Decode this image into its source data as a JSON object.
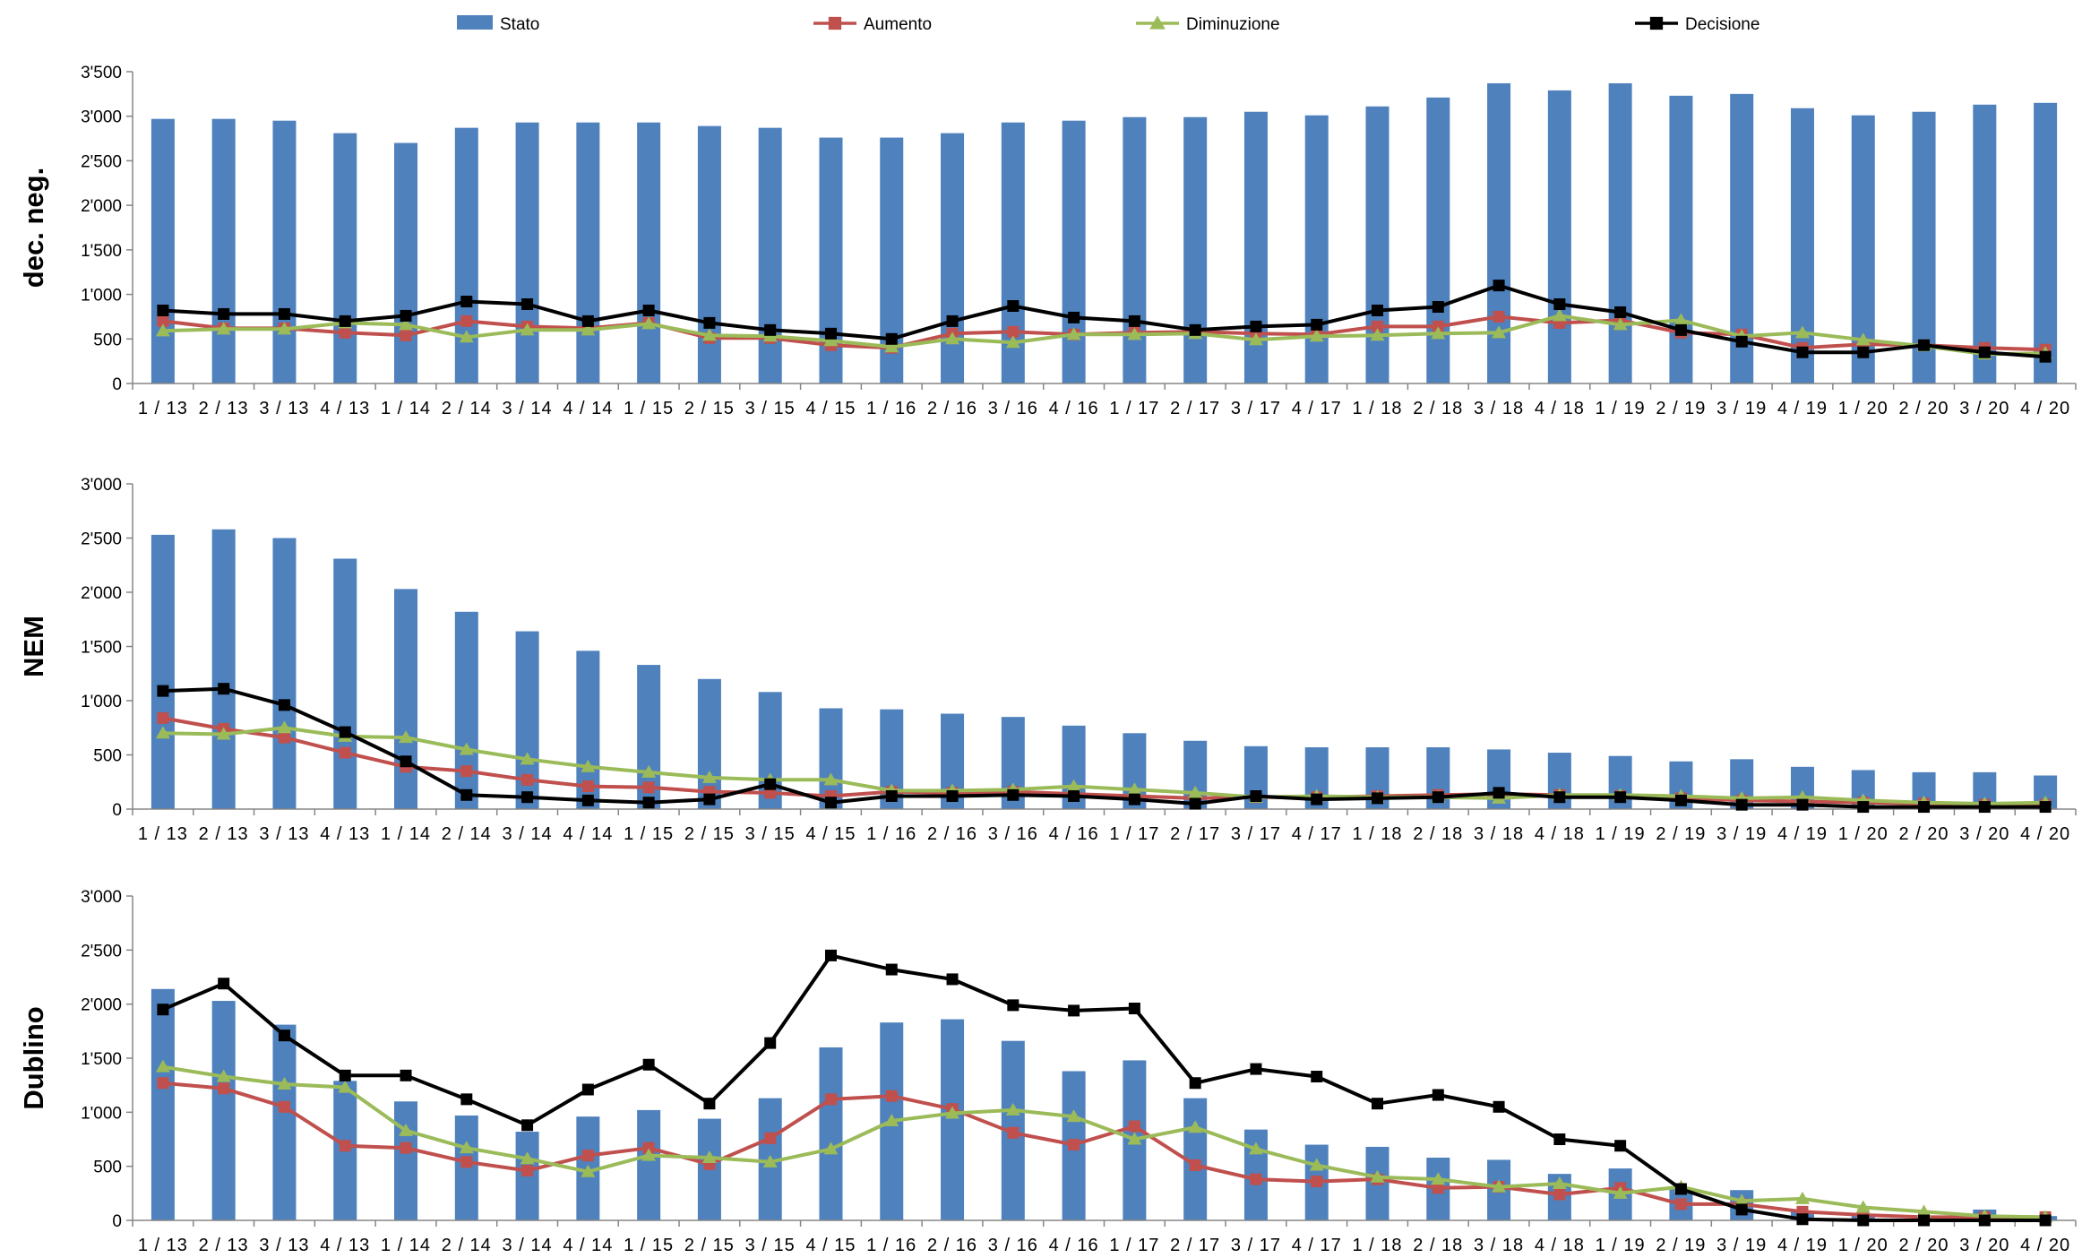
{
  "colors": {
    "stato": "#4F81BD",
    "aumento": "#C0504D",
    "diminuzione": "#9BBB59",
    "decisione": "#000000"
  },
  "legend": [
    "Stato",
    "Aumento",
    "Diminuzione",
    "Decisione"
  ],
  "chart_data": [
    {
      "type": "bar",
      "title": "dec. neg.",
      "categories": [
        "1 / 13",
        "2 / 13",
        "3 / 13",
        "4 / 13",
        "1 / 14",
        "2 / 14",
        "3 / 14",
        "4 / 14",
        "1 / 15",
        "2 / 15",
        "3 / 15",
        "4 / 15",
        "1 / 16",
        "2 / 16",
        "3 / 16",
        "4 / 16",
        "1 / 17",
        "2 / 17",
        "3 / 17",
        "4 / 17",
        "1 / 18",
        "2 / 18",
        "3 / 18",
        "4 / 18",
        "1 / 19",
        "2 / 19",
        "3 / 19",
        "4 / 19",
        "1 / 20",
        "2 / 20",
        "3 / 20",
        "4 / 20"
      ],
      "ylim": [
        0,
        3500
      ],
      "yticks": [
        0,
        500,
        1000,
        1500,
        2000,
        2500,
        3000,
        3500
      ],
      "ytick_labels": [
        "0",
        "500",
        "1'000",
        "1'500",
        "2'000",
        "2'500",
        "3'000",
        "3'500"
      ],
      "series": [
        {
          "name": "Stato",
          "kind": "bar",
          "values": [
            2970,
            2970,
            2950,
            2810,
            2700,
            2870,
            2930,
            2930,
            2930,
            2890,
            2870,
            2760,
            2760,
            2810,
            2930,
            2950,
            2990,
            2990,
            3050,
            3010,
            3110,
            3210,
            3370,
            3290,
            3370,
            3230,
            3250,
            3090,
            3010,
            3050,
            3130,
            3150
          ]
        },
        {
          "name": "Aumento",
          "kind": "line",
          "values": [
            700,
            620,
            620,
            570,
            540,
            700,
            640,
            620,
            680,
            510,
            510,
            430,
            400,
            560,
            580,
            550,
            570,
            580,
            560,
            550,
            640,
            640,
            750,
            680,
            710,
            570,
            550,
            400,
            440,
            430,
            400,
            380
          ]
        },
        {
          "name": "Diminuzione",
          "kind": "line",
          "values": [
            590,
            610,
            610,
            680,
            660,
            520,
            600,
            600,
            670,
            540,
            530,
            480,
            410,
            500,
            460,
            550,
            550,
            560,
            490,
            530,
            540,
            560,
            570,
            760,
            660,
            710,
            530,
            570,
            490,
            420,
            330,
            340
          ]
        },
        {
          "name": "Decisione",
          "kind": "line",
          "values": [
            820,
            780,
            780,
            700,
            760,
            920,
            890,
            700,
            820,
            680,
            600,
            560,
            500,
            700,
            870,
            740,
            700,
            600,
            640,
            660,
            820,
            860,
            1100,
            890,
            800,
            600,
            470,
            350,
            350,
            430,
            350,
            300
          ]
        }
      ]
    },
    {
      "type": "bar",
      "title": "NEM",
      "categories": [
        "1 / 13",
        "2 / 13",
        "3 / 13",
        "4 / 13",
        "1 / 14",
        "2 / 14",
        "3 / 14",
        "4 / 14",
        "1 / 15",
        "2 / 15",
        "3 / 15",
        "4 / 15",
        "1 / 16",
        "2 / 16",
        "3 / 16",
        "4 / 16",
        "1 / 17",
        "2 / 17",
        "3 / 17",
        "4 / 17",
        "1 / 18",
        "2 / 18",
        "3 / 18",
        "4 / 18",
        "1 / 19",
        "2 / 19",
        "3 / 19",
        "4 / 19",
        "1 / 20",
        "2 / 20",
        "3 / 20",
        "4 / 20"
      ],
      "ylim": [
        0,
        3000
      ],
      "yticks": [
        0,
        500,
        1000,
        1500,
        2000,
        2500,
        3000
      ],
      "ytick_labels": [
        "0",
        "500",
        "1'000",
        "1'500",
        "2'000",
        "2'500",
        "3'000"
      ],
      "series": [
        {
          "name": "Stato",
          "kind": "bar",
          "values": [
            2530,
            2580,
            2500,
            2310,
            2030,
            1820,
            1640,
            1460,
            1330,
            1200,
            1080,
            930,
            920,
            880,
            850,
            770,
            700,
            630,
            580,
            570,
            570,
            570,
            550,
            520,
            490,
            440,
            460,
            390,
            360,
            340,
            340,
            310
          ]
        },
        {
          "name": "Aumento",
          "kind": "line",
          "values": [
            840,
            740,
            660,
            520,
            390,
            350,
            270,
            210,
            200,
            160,
            150,
            120,
            160,
            150,
            160,
            140,
            120,
            100,
            110,
            110,
            120,
            130,
            140,
            130,
            120,
            100,
            80,
            70,
            60,
            50,
            40,
            40
          ]
        },
        {
          "name": "Diminuzione",
          "kind": "line",
          "values": [
            700,
            690,
            750,
            670,
            660,
            550,
            460,
            390,
            340,
            290,
            270,
            270,
            170,
            170,
            180,
            210,
            180,
            150,
            110,
            120,
            110,
            110,
            100,
            130,
            130,
            120,
            100,
            110,
            80,
            60,
            50,
            60
          ]
        },
        {
          "name": "Decisione",
          "kind": "line",
          "values": [
            1090,
            1110,
            960,
            710,
            440,
            130,
            110,
            80,
            60,
            90,
            230,
            60,
            120,
            120,
            130,
            120,
            90,
            50,
            120,
            90,
            100,
            110,
            150,
            110,
            110,
            80,
            40,
            40,
            20,
            20,
            20,
            20
          ]
        }
      ]
    },
    {
      "type": "bar",
      "title": "Dublino",
      "categories": [
        "1 / 13",
        "2 / 13",
        "3 / 13",
        "4 / 13",
        "1 / 14",
        "2 / 14",
        "3 / 14",
        "4 / 14",
        "1 / 15",
        "2 / 15",
        "3 / 15",
        "4 / 15",
        "1 / 16",
        "2 / 16",
        "3 / 16",
        "4 / 16",
        "1 / 17",
        "2 / 17",
        "3 / 17",
        "4 / 17",
        "1 / 18",
        "2 / 18",
        "3 / 18",
        "4 / 18",
        "1 / 19",
        "2 / 19",
        "3 / 19",
        "4 / 19",
        "1 / 20",
        "2 / 20",
        "3 / 20",
        "4 / 20"
      ],
      "ylim": [
        0,
        3000
      ],
      "yticks": [
        0,
        500,
        1000,
        1500,
        2000,
        2500,
        3000
      ],
      "ytick_labels": [
        "0",
        "500",
        "1'000",
        "1'500",
        "2'000",
        "2'500",
        "3'000"
      ],
      "series": [
        {
          "name": "Stato",
          "kind": "bar",
          "values": [
            2140,
            2030,
            1810,
            1290,
            1100,
            970,
            820,
            960,
            1020,
            940,
            1130,
            1600,
            1830,
            1860,
            1660,
            1380,
            1480,
            1130,
            840,
            700,
            680,
            580,
            560,
            430,
            480,
            300,
            280,
            90,
            60,
            30,
            100,
            40
          ]
        },
        {
          "name": "Aumento",
          "kind": "line",
          "values": [
            1270,
            1220,
            1050,
            690,
            670,
            540,
            460,
            600,
            670,
            520,
            760,
            1120,
            1150,
            1030,
            810,
            700,
            870,
            510,
            380,
            360,
            380,
            300,
            310,
            240,
            300,
            150,
            150,
            80,
            50,
            30,
            30,
            30
          ]
        },
        {
          "name": "Diminuzione",
          "kind": "line",
          "values": [
            1420,
            1330,
            1260,
            1230,
            830,
            670,
            570,
            450,
            600,
            580,
            540,
            660,
            920,
            990,
            1020,
            960,
            750,
            860,
            660,
            510,
            400,
            380,
            310,
            340,
            250,
            310,
            180,
            200,
            120,
            80,
            40,
            30
          ]
        },
        {
          "name": "Decisione",
          "kind": "line",
          "values": [
            1950,
            2190,
            1710,
            1340,
            1340,
            1120,
            880,
            1210,
            1440,
            1080,
            1640,
            2450,
            2320,
            2230,
            1990,
            1940,
            1960,
            1270,
            1400,
            1330,
            1080,
            1160,
            1050,
            750,
            690,
            290,
            100,
            10,
            0,
            0,
            0,
            0
          ]
        }
      ]
    }
  ]
}
